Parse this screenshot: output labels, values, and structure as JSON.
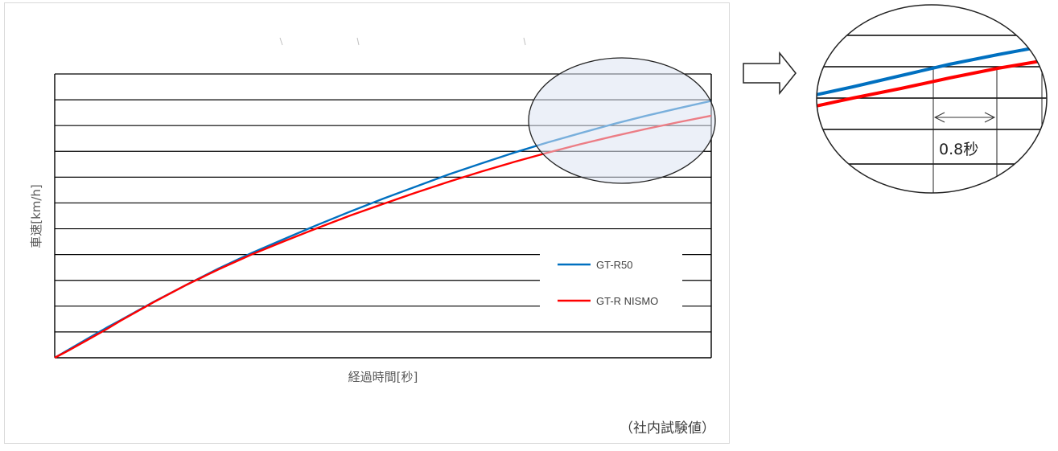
{
  "chart_data": {
    "type": "line",
    "title": "",
    "xlabel": "経過時間[秒]",
    "ylabel": "車速[km/h]",
    "grid": "horizontal",
    "legend_position": "right",
    "note": "（社内試験値）",
    "x_unit_note": "axis values not printed",
    "series": [
      {
        "name": "GT-R50",
        "color": "#0070c0",
        "points": [
          [
            0,
            0
          ],
          [
            0.02,
            0.027
          ],
          [
            0.05,
            0.067
          ],
          [
            0.08,
            0.107
          ],
          [
            0.1,
            0.132
          ],
          [
            0.15,
            0.196
          ],
          [
            0.2,
            0.256
          ],
          [
            0.25,
            0.315
          ],
          [
            0.3,
            0.369
          ],
          [
            0.35,
            0.419
          ],
          [
            0.4,
            0.468
          ],
          [
            0.45,
            0.515
          ],
          [
            0.5,
            0.56
          ],
          [
            0.55,
            0.603
          ],
          [
            0.6,
            0.646
          ],
          [
            0.65,
            0.685
          ],
          [
            0.7,
            0.723
          ],
          [
            0.75,
            0.758
          ],
          [
            0.8,
            0.791
          ],
          [
            0.85,
            0.823
          ],
          [
            0.9,
            0.852
          ],
          [
            0.95,
            0.879
          ],
          [
            1.0,
            0.905
          ]
        ]
      },
      {
        "name": "GT-R NISMO",
        "color": "#ff0000",
        "points": [
          [
            0,
            0
          ],
          [
            0.02,
            0.024
          ],
          [
            0.05,
            0.063
          ],
          [
            0.08,
            0.102
          ],
          [
            0.1,
            0.13
          ],
          [
            0.15,
            0.195
          ],
          [
            0.2,
            0.256
          ],
          [
            0.25,
            0.312
          ],
          [
            0.3,
            0.364
          ],
          [
            0.35,
            0.411
          ],
          [
            0.4,
            0.457
          ],
          [
            0.45,
            0.501
          ],
          [
            0.5,
            0.542
          ],
          [
            0.55,
            0.582
          ],
          [
            0.6,
            0.62
          ],
          [
            0.65,
            0.656
          ],
          [
            0.7,
            0.69
          ],
          [
            0.75,
            0.722
          ],
          [
            0.8,
            0.752
          ],
          [
            0.85,
            0.78
          ],
          [
            0.9,
            0.806
          ],
          [
            0.95,
            0.83
          ],
          [
            1.0,
            0.853
          ]
        ]
      }
    ],
    "ylim": [
      0,
      11
    ],
    "y_grid_count": 11
  },
  "zoom": {
    "label": "0.8秒",
    "arrow_icon": "right-arrow-icon",
    "highlight_fill": "#dde3f2"
  }
}
